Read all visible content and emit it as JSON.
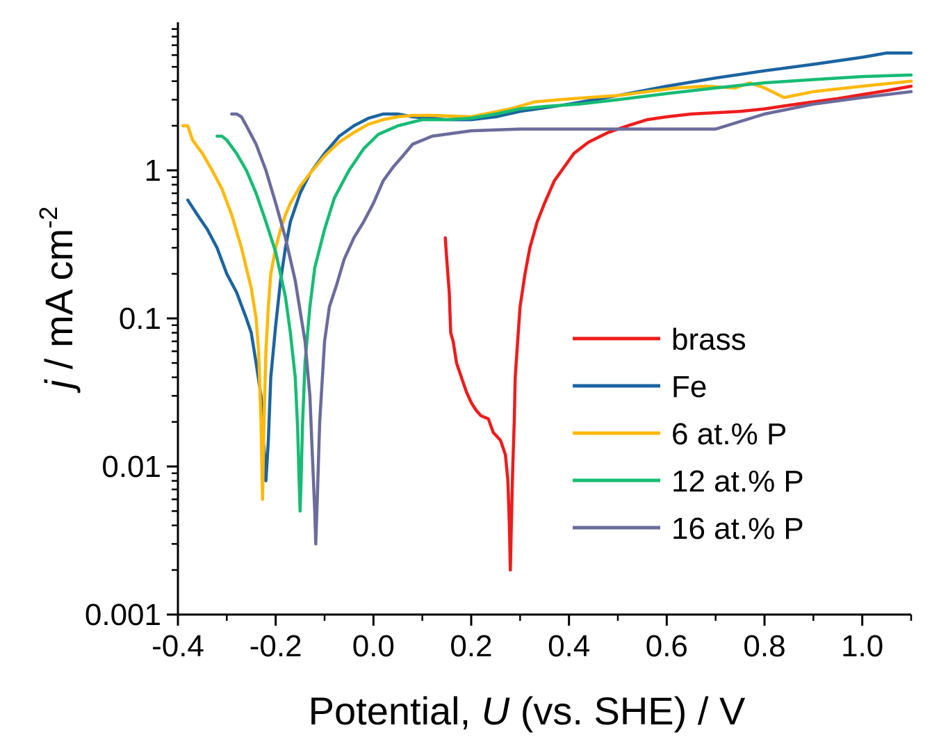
{
  "chart_data": {
    "type": "line",
    "title": "",
    "xlabel": {
      "pre": "Potential, ",
      "italic": "U",
      "post": " (vs. SHE) / V"
    },
    "ylabel": {
      "italic": "j",
      "post": " / mA cm",
      "sup": "-2"
    },
    "xlim": [
      -0.4,
      1.1
    ],
    "ylim": [
      0.001,
      10
    ],
    "yscale": "log",
    "xticks": [
      "-0.4",
      "-0.2",
      "0.0",
      "0.2",
      "0.4",
      "0.6",
      "0.8",
      "1.0"
    ],
    "xtick_values": [
      -0.4,
      -0.2,
      0.0,
      0.2,
      0.4,
      0.6,
      0.8,
      1.0
    ],
    "yticks": [
      "0.001",
      "0.01",
      "0.1",
      "1"
    ],
    "ytick_values": [
      0.001,
      0.01,
      0.1,
      1
    ],
    "legend_position": "lower-right",
    "series": [
      {
        "name": "brass",
        "color": "#ee1c1c",
        "x": [
          0.147,
          0.15,
          0.155,
          0.158,
          0.163,
          0.17,
          0.18,
          0.19,
          0.2,
          0.21,
          0.22,
          0.235,
          0.245,
          0.26,
          0.27,
          0.275,
          0.278,
          0.28,
          0.282,
          0.285,
          0.288,
          0.29,
          0.295,
          0.3,
          0.31,
          0.32,
          0.335,
          0.35,
          0.37,
          0.39,
          0.41,
          0.44,
          0.48,
          0.52,
          0.56,
          0.6,
          0.65,
          0.7,
          0.75,
          0.8,
          0.85,
          0.9,
          0.95,
          1.0,
          1.05,
          1.1
        ],
        "y": [
          0.35,
          0.25,
          0.15,
          0.08,
          0.07,
          0.05,
          0.04,
          0.032,
          0.027,
          0.024,
          0.022,
          0.021,
          0.017,
          0.015,
          0.012,
          0.008,
          0.004,
          0.002,
          0.004,
          0.01,
          0.02,
          0.04,
          0.07,
          0.12,
          0.2,
          0.3,
          0.45,
          0.6,
          0.85,
          1.05,
          1.3,
          1.55,
          1.8,
          2.0,
          2.2,
          2.3,
          2.4,
          2.45,
          2.5,
          2.6,
          2.75,
          2.9,
          3.05,
          3.25,
          3.45,
          3.7
        ]
      },
      {
        "name": "Fe",
        "color": "#1b64a0",
        "x": [
          -0.38,
          -0.36,
          -0.34,
          -0.32,
          -0.3,
          -0.28,
          -0.26,
          -0.25,
          -0.24,
          -0.23,
          -0.225,
          -0.22,
          -0.215,
          -0.21,
          -0.2,
          -0.19,
          -0.18,
          -0.17,
          -0.15,
          -0.13,
          -0.1,
          -0.07,
          -0.04,
          -0.01,
          0.02,
          0.05,
          0.08,
          0.15,
          0.2,
          0.25,
          0.3,
          0.4,
          0.5,
          0.6,
          0.7,
          0.8,
          0.9,
          1.0,
          1.05,
          1.1
        ],
        "y": [
          0.63,
          0.5,
          0.4,
          0.3,
          0.2,
          0.15,
          0.1,
          0.08,
          0.05,
          0.03,
          0.015,
          0.008,
          0.015,
          0.04,
          0.09,
          0.18,
          0.3,
          0.45,
          0.7,
          0.95,
          1.3,
          1.7,
          2.0,
          2.25,
          2.4,
          2.4,
          2.3,
          2.2,
          2.2,
          2.3,
          2.5,
          2.8,
          3.2,
          3.7,
          4.2,
          4.7,
          5.2,
          5.8,
          6.2,
          6.2
        ]
      },
      {
        "name": "6 at.% P",
        "color": "#ffb90c",
        "x": [
          -0.39,
          -0.38,
          -0.37,
          -0.35,
          -0.33,
          -0.31,
          -0.29,
          -0.27,
          -0.25,
          -0.24,
          -0.235,
          -0.23,
          -0.227,
          -0.224,
          -0.22,
          -0.215,
          -0.21,
          -0.2,
          -0.19,
          -0.18,
          -0.17,
          -0.15,
          -0.13,
          -0.1,
          -0.07,
          -0.04,
          -0.01,
          0.02,
          0.05,
          0.08,
          0.12,
          0.2,
          0.28,
          0.33,
          0.38,
          0.44,
          0.5,
          0.56,
          0.62,
          0.68,
          0.74,
          0.77,
          0.8,
          0.84,
          0.9,
          1.0,
          1.1
        ],
        "y": [
          2.0,
          2.0,
          1.6,
          1.3,
          1.0,
          0.75,
          0.5,
          0.3,
          0.16,
          0.1,
          0.06,
          0.02,
          0.006,
          0.02,
          0.06,
          0.12,
          0.2,
          0.3,
          0.4,
          0.5,
          0.6,
          0.78,
          0.95,
          1.25,
          1.55,
          1.8,
          2.05,
          2.2,
          2.3,
          2.35,
          2.35,
          2.3,
          2.6,
          2.9,
          3.0,
          3.1,
          3.2,
          3.4,
          3.6,
          3.7,
          3.6,
          3.9,
          3.6,
          3.1,
          3.4,
          3.7,
          4.0
        ]
      },
      {
        "name": "12 at.% P",
        "color": "#17bc74",
        "x": [
          -0.32,
          -0.31,
          -0.3,
          -0.28,
          -0.26,
          -0.24,
          -0.22,
          -0.2,
          -0.18,
          -0.17,
          -0.16,
          -0.155,
          -0.152,
          -0.15,
          -0.148,
          -0.145,
          -0.14,
          -0.13,
          -0.12,
          -0.1,
          -0.08,
          -0.05,
          -0.02,
          0.01,
          0.05,
          0.1,
          0.15,
          0.2,
          0.25,
          0.3,
          0.35,
          0.42,
          0.5,
          0.6,
          0.7,
          0.8,
          0.9,
          1.0,
          1.1
        ],
        "y": [
          1.7,
          1.7,
          1.6,
          1.3,
          1.0,
          0.7,
          0.45,
          0.28,
          0.14,
          0.08,
          0.04,
          0.018,
          0.008,
          0.005,
          0.008,
          0.02,
          0.05,
          0.12,
          0.22,
          0.4,
          0.65,
          1.0,
          1.4,
          1.75,
          2.0,
          2.2,
          2.2,
          2.25,
          2.4,
          2.6,
          2.7,
          2.8,
          3.0,
          3.3,
          3.6,
          3.9,
          4.1,
          4.3,
          4.4
        ]
      },
      {
        "name": "16 at.% P",
        "color": "#6b6b9c",
        "x": [
          -0.29,
          -0.28,
          -0.27,
          -0.26,
          -0.24,
          -0.22,
          -0.2,
          -0.18,
          -0.16,
          -0.14,
          -0.13,
          -0.125,
          -0.12,
          -0.118,
          -0.115,
          -0.11,
          -0.1,
          -0.09,
          -0.075,
          -0.06,
          -0.04,
          -0.02,
          0.0,
          0.02,
          0.04,
          0.06,
          0.08,
          0.12,
          0.2,
          0.3,
          0.4,
          0.5,
          0.6,
          0.7,
          0.8,
          0.9,
          1.0,
          1.1
        ],
        "y": [
          2.4,
          2.4,
          2.3,
          2.0,
          1.5,
          1.0,
          0.6,
          0.35,
          0.18,
          0.07,
          0.03,
          0.012,
          0.005,
          0.003,
          0.006,
          0.02,
          0.07,
          0.12,
          0.17,
          0.25,
          0.35,
          0.45,
          0.6,
          0.85,
          1.05,
          1.25,
          1.5,
          1.7,
          1.85,
          1.9,
          1.9,
          1.9,
          1.9,
          1.9,
          2.4,
          2.8,
          3.1,
          3.4
        ]
      }
    ]
  }
}
